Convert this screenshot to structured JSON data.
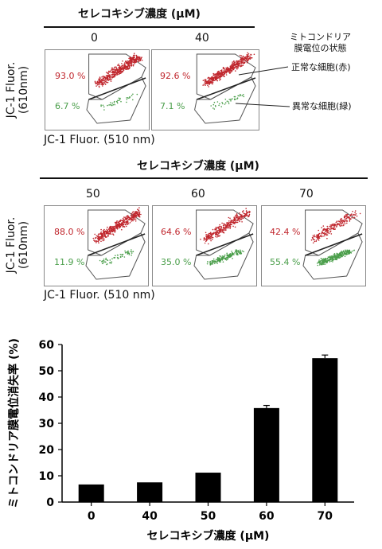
{
  "top_block": {
    "title": "セレコキシブ濃度 (µM)",
    "concentrations": [
      "0",
      "40"
    ],
    "y_label_line1": "JC-1 Fluor.",
    "y_label_line2": "(610nm)",
    "x_label": "JC-1 Fluor. (510 nm)",
    "panels": [
      {
        "red_pct": "93.0 %",
        "green_pct": "6.7 %"
      },
      {
        "red_pct": "92.6 %",
        "green_pct": "7.1 %"
      }
    ],
    "annotation_header_line1": "ミトコンドリア",
    "annotation_header_line2": "膜電位の状態",
    "annotation_normal": "正常な細胞(赤)",
    "annotation_abnormal": "異常な細胞(緑)"
  },
  "middle_block": {
    "title": "セレコキシブ濃度 (µM)",
    "concentrations": [
      "50",
      "60",
      "70"
    ],
    "y_label_line1": "JC-1 Fluor.",
    "y_label_line2": "(610nm)",
    "x_label": "JC-1 Fluor. (510 nm)",
    "panels": [
      {
        "red_pct": "88.0 %",
        "green_pct": "11.9 %"
      },
      {
        "red_pct": "64.6 %",
        "green_pct": "35.0 %"
      },
      {
        "red_pct": "42.4 %",
        "green_pct": "55.4 %"
      }
    ]
  },
  "colors": {
    "red": "#c0262d",
    "green": "#4a9e4a",
    "bar": "#000000"
  },
  "chart_data": [
    {
      "type": "scatter",
      "description_type": "flow cytometry dot plots",
      "panels": [
        {
          "concentration": "0",
          "red_pct": 93.0,
          "green_pct": 6.7
        },
        {
          "concentration": "40",
          "red_pct": 92.6,
          "green_pct": 7.1
        },
        {
          "concentration": "50",
          "red_pct": 88.0,
          "green_pct": 11.9
        },
        {
          "concentration": "60",
          "red_pct": 64.6,
          "green_pct": 35.0
        },
        {
          "concentration": "70",
          "red_pct": 42.4,
          "green_pct": 55.4
        }
      ],
      "xlabel": "JC-1 Fluor. (510 nm)",
      "ylabel": "JC-1 Fluor. (610nm)"
    },
    {
      "type": "bar",
      "categories": [
        "0",
        "40",
        "50",
        "60",
        "70"
      ],
      "values": [
        6.7,
        7.5,
        11.2,
        35.8,
        54.8
      ],
      "errors": [
        0,
        0,
        0,
        1.0,
        1.2
      ],
      "xlabel": "セレコキシブ濃度 (µM)",
      "ylabel": "ミトコンドリア膜電位消失率 (%)",
      "ylim": [
        0,
        60
      ],
      "yticks": [
        "0",
        "10",
        "20",
        "30",
        "40",
        "50",
        "60"
      ],
      "grid": false
    }
  ]
}
